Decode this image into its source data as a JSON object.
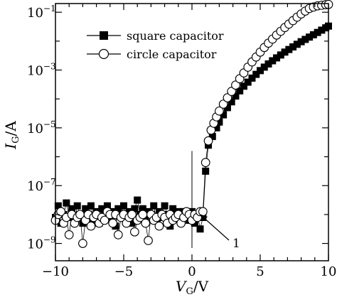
{
  "chart_data": {
    "type": "scatter",
    "xlabel": {
      "main": "V",
      "sub": "G",
      "unit": "/V"
    },
    "ylabel": {
      "main": "I",
      "sub": "G",
      "unit": "/A"
    },
    "xlim": [
      -10,
      10
    ],
    "ylim_log10": [
      -9.6,
      -0.7
    ],
    "y_scale": "log",
    "x_ticks": [
      {
        "value": -10,
        "label": "−10"
      },
      {
        "value": -5,
        "label": "−5"
      },
      {
        "value": 0,
        "label": "0"
      },
      {
        "value": 5,
        "label": "5"
      },
      {
        "value": 10,
        "label": "10"
      }
    ],
    "y_ticks": [
      {
        "exp": -9,
        "base": "10",
        "power": "−9"
      },
      {
        "exp": -7,
        "base": "10",
        "power": "−7"
      },
      {
        "exp": -5,
        "base": "10",
        "power": "−5"
      },
      {
        "exp": -3,
        "base": "10",
        "power": "−3"
      },
      {
        "exp": -1,
        "base": "10",
        "power": "−1"
      }
    ],
    "legend_position": "top-left",
    "annotation": {
      "label": "1",
      "x": 0.4,
      "y_log10": -8.5
    },
    "series": [
      {
        "name": "square capacitor",
        "marker": "filled-square",
        "points": [
          [
            -10.0,
            -8.1
          ],
          [
            -9.8,
            -7.7
          ],
          [
            -9.6,
            -8.3
          ],
          [
            -9.4,
            -8.0
          ],
          [
            -9.2,
            -7.6
          ],
          [
            -9.0,
            -8.1
          ],
          [
            -8.8,
            -7.8
          ],
          [
            -8.6,
            -8.2
          ],
          [
            -8.4,
            -7.7
          ],
          [
            -8.2,
            -8.0
          ],
          [
            -8.0,
            -8.3
          ],
          [
            -7.8,
            -7.8
          ],
          [
            -7.6,
            -8.1
          ],
          [
            -7.4,
            -7.7
          ],
          [
            -7.2,
            -8.2
          ],
          [
            -7.0,
            -7.9
          ],
          [
            -6.8,
            -8.3
          ],
          [
            -6.6,
            -7.8
          ],
          [
            -6.4,
            -8.0
          ],
          [
            -6.2,
            -7.7
          ],
          [
            -6.0,
            -8.1
          ],
          [
            -5.8,
            -7.9
          ],
          [
            -5.6,
            -8.4
          ],
          [
            -5.4,
            -7.8
          ],
          [
            -5.2,
            -8.0
          ],
          [
            -5.0,
            -7.7
          ],
          [
            -4.8,
            -8.2
          ],
          [
            -4.6,
            -7.9
          ],
          [
            -4.4,
            -8.3
          ],
          [
            -4.2,
            -7.8
          ],
          [
            -4.0,
            -7.5
          ],
          [
            -3.8,
            -8.0
          ],
          [
            -3.6,
            -7.8
          ],
          [
            -3.4,
            -8.2
          ],
          [
            -3.2,
            -7.9
          ],
          [
            -3.0,
            -8.0
          ],
          [
            -2.8,
            -7.7
          ],
          [
            -2.6,
            -8.2
          ],
          [
            -2.4,
            -7.9
          ],
          [
            -2.2,
            -8.1
          ],
          [
            -2.0,
            -7.7
          ],
          [
            -1.8,
            -8.0
          ],
          [
            -1.6,
            -8.4
          ],
          [
            -1.4,
            -7.8
          ],
          [
            -1.2,
            -8.1
          ],
          [
            -1.0,
            -7.9
          ],
          [
            -0.8,
            -8.2
          ],
          [
            -0.6,
            -7.9
          ],
          [
            -0.4,
            -8.0
          ],
          [
            -0.2,
            -8.2
          ],
          [
            0.0,
            -7.9
          ],
          [
            0.2,
            -8.3
          ],
          [
            0.4,
            -8.0
          ],
          [
            0.6,
            -8.5
          ],
          [
            0.8,
            -8.1
          ],
          [
            1.0,
            -6.5
          ],
          [
            1.2,
            -5.6
          ],
          [
            1.5,
            -5.3
          ],
          [
            1.8,
            -5.0
          ],
          [
            2.0,
            -4.8
          ],
          [
            2.3,
            -4.55
          ],
          [
            2.6,
            -4.3
          ],
          [
            2.9,
            -4.1
          ],
          [
            3.2,
            -3.9
          ],
          [
            3.5,
            -3.72
          ],
          [
            3.8,
            -3.56
          ],
          [
            4.1,
            -3.42
          ],
          [
            4.4,
            -3.28
          ],
          [
            4.7,
            -3.15
          ],
          [
            5.0,
            -3.02
          ],
          [
            5.3,
            -2.9
          ],
          [
            5.6,
            -2.79
          ],
          [
            5.9,
            -2.68
          ],
          [
            6.2,
            -2.58
          ],
          [
            6.5,
            -2.48
          ],
          [
            6.8,
            -2.38
          ],
          [
            7.1,
            -2.29
          ],
          [
            7.4,
            -2.2
          ],
          [
            7.7,
            -2.11
          ],
          [
            8.0,
            -2.02
          ],
          [
            8.3,
            -1.94
          ],
          [
            8.6,
            -1.86
          ],
          [
            8.9,
            -1.78
          ],
          [
            9.2,
            -1.7
          ],
          [
            9.5,
            -1.62
          ],
          [
            9.8,
            -1.54
          ],
          [
            10.0,
            -1.48
          ]
        ]
      },
      {
        "name": "circle capacitor",
        "marker": "open-circle",
        "points": [
          [
            -10.0,
            -8.2
          ],
          [
            -9.8,
            -8.0
          ],
          [
            -9.6,
            -7.9
          ],
          [
            -9.4,
            -8.3
          ],
          [
            -9.2,
            -8.1
          ],
          [
            -9.0,
            -8.7
          ],
          [
            -8.8,
            -8.0
          ],
          [
            -8.6,
            -8.3
          ],
          [
            -8.4,
            -8.1
          ],
          [
            -8.2,
            -8.0
          ],
          [
            -8.0,
            -9.0
          ],
          [
            -7.8,
            -8.2
          ],
          [
            -7.6,
            -8.0
          ],
          [
            -7.4,
            -8.4
          ],
          [
            -7.2,
            -8.1
          ],
          [
            -7.0,
            -8.0
          ],
          [
            -6.8,
            -8.3
          ],
          [
            -6.6,
            -8.1
          ],
          [
            -6.4,
            -8.2
          ],
          [
            -6.2,
            -7.9
          ],
          [
            -6.0,
            -8.0
          ],
          [
            -5.8,
            -8.3
          ],
          [
            -5.6,
            -8.0
          ],
          [
            -5.4,
            -8.7
          ],
          [
            -5.2,
            -8.1
          ],
          [
            -5.0,
            -8.0
          ],
          [
            -4.8,
            -8.3
          ],
          [
            -4.6,
            -8.1
          ],
          [
            -4.4,
            -8.0
          ],
          [
            -4.2,
            -8.6
          ],
          [
            -4.0,
            -8.2
          ],
          [
            -3.8,
            -8.1
          ],
          [
            -3.6,
            -8.0
          ],
          [
            -3.4,
            -8.3
          ],
          [
            -3.2,
            -8.9
          ],
          [
            -3.0,
            -8.0
          ],
          [
            -2.8,
            -8.2
          ],
          [
            -2.6,
            -8.1
          ],
          [
            -2.4,
            -8.4
          ],
          [
            -2.2,
            -8.0
          ],
          [
            -2.0,
            -8.1
          ],
          [
            -1.8,
            -8.3
          ],
          [
            -1.6,
            -8.0
          ],
          [
            -1.4,
            -8.2
          ],
          [
            -1.2,
            -8.1
          ],
          [
            -1.0,
            -8.0
          ],
          [
            -0.8,
            -8.3
          ],
          [
            -0.6,
            -8.1
          ],
          [
            -0.4,
            -7.9
          ],
          [
            -0.2,
            -8.0
          ],
          [
            0.0,
            -8.2
          ],
          [
            0.2,
            -8.0
          ],
          [
            0.4,
            -8.1
          ],
          [
            0.6,
            -7.9
          ],
          [
            0.8,
            -7.9
          ],
          [
            1.0,
            -6.2
          ],
          [
            1.2,
            -5.45
          ],
          [
            1.4,
            -5.08
          ],
          [
            1.6,
            -4.84
          ],
          [
            1.8,
            -4.62
          ],
          [
            2.0,
            -4.42
          ],
          [
            2.3,
            -4.18
          ],
          [
            2.6,
            -3.96
          ],
          [
            2.9,
            -3.74
          ],
          [
            3.2,
            -3.52
          ],
          [
            3.5,
            -3.3
          ],
          [
            3.8,
            -3.1
          ],
          [
            4.1,
            -2.9
          ],
          [
            4.4,
            -2.72
          ],
          [
            4.7,
            -2.55
          ],
          [
            5.0,
            -2.38
          ],
          [
            5.3,
            -2.22
          ],
          [
            5.6,
            -2.07
          ],
          [
            5.9,
            -1.93
          ],
          [
            6.2,
            -1.79
          ],
          [
            6.5,
            -1.66
          ],
          [
            6.8,
            -1.53
          ],
          [
            7.1,
            -1.41
          ],
          [
            7.4,
            -1.29
          ],
          [
            7.7,
            -1.17
          ],
          [
            8.0,
            -1.06
          ],
          [
            8.3,
            -0.96
          ],
          [
            8.6,
            -0.87
          ],
          [
            8.9,
            -0.82
          ],
          [
            9.2,
            -0.78
          ],
          [
            9.5,
            -0.76
          ],
          [
            9.8,
            -0.74
          ],
          [
            10.0,
            -0.73
          ]
        ]
      }
    ]
  }
}
